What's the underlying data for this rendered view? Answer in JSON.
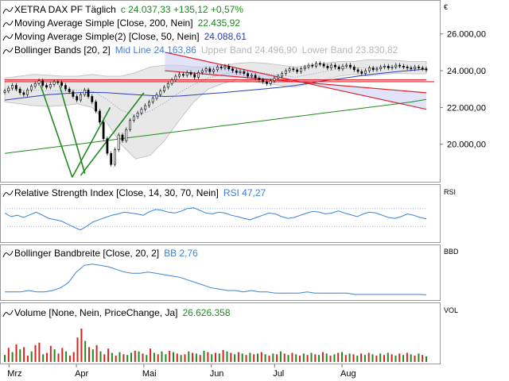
{
  "chart_data": {
    "type": "candlestick",
    "x_labels": [
      "Mrz",
      "Apr",
      "Mai",
      "Jun",
      "Jul",
      "Aug"
    ],
    "price_panel": {
      "axis_currency": "€",
      "y_ticks": [
        20000,
        22000,
        24000,
        26000
      ],
      "y_tick_labels": [
        "20.000,00",
        "22.000,00",
        "24.000,00",
        "26.000,00"
      ],
      "ylim": [
        18000,
        27500
      ],
      "legend": [
        {
          "label": "XETRA DAX PF  Täglich",
          "value": "c 24.037,33  +135,12  +0,57%",
          "value_color": "#1a8a1a"
        },
        {
          "label": "Moving Average Simple [Close, 200, Nein]",
          "value": "22.435,92",
          "value_color": "#1a8a1a"
        },
        {
          "label": "Moving Average Simple(2) [Close, 50, Nein]",
          "value": "24.088,61",
          "value_color": "#2a3fb8"
        },
        {
          "label": "Bollinger Bands [20, 2]",
          "value": "Mid Line 24.163,86",
          "value_color": "#4a7ed6",
          "extra1": "Upper Band 24.496,90",
          "extra2": "Lower Band 23.830,82"
        }
      ],
      "close_series": [
        22900,
        23050,
        23200,
        23000,
        22800,
        22700,
        22950,
        23150,
        23300,
        23450,
        23200,
        23100,
        23250,
        23400,
        23350,
        23200,
        23000,
        22850,
        22600,
        22400,
        22700,
        22950,
        22600,
        22300,
        21800,
        21200,
        20300,
        19500,
        18900,
        19700,
        20500,
        20200,
        20800,
        21300,
        21500,
        21700,
        21900,
        22100,
        22300,
        22500,
        22700,
        22900,
        23100,
        23300,
        23500,
        23700,
        23800,
        23750,
        23900,
        23800,
        23650,
        23900,
        24000,
        24100,
        23950,
        24050,
        24200,
        24150,
        24250,
        24100,
        24000,
        23900,
        23950,
        23850,
        23700,
        23750,
        23600,
        23500,
        23400,
        23300,
        23450,
        23600,
        23700,
        23850,
        24000,
        24100,
        24050,
        23950,
        24100,
        24200,
        24300,
        24250,
        24400,
        24350,
        24250,
        24150,
        24300,
        24200,
        24100,
        24250,
        24300,
        24200,
        24050,
        23950,
        23850,
        24000,
        24150,
        24050,
        24100,
        24200,
        24250,
        24150,
        24200,
        24300,
        24250,
        24200,
        24150,
        24100,
        24200,
        24150,
        24100,
        24037
      ],
      "sma200": [
        19500,
        19600,
        19700,
        19800,
        19900,
        20000,
        20100,
        20200,
        20300,
        20400,
        20500,
        20600,
        20700,
        20800,
        20900,
        21000,
        21100,
        21200,
        21300,
        21400,
        21500,
        21600,
        21700,
        21800,
        21900,
        22000,
        22100,
        22200,
        22300,
        22436
      ],
      "sma50": [
        22400,
        22500,
        22600,
        22700,
        22750,
        22800,
        22820,
        22800,
        22750,
        22700,
        22650,
        22600,
        22620,
        22680,
        22750,
        22800,
        22880,
        22950,
        23020,
        23100,
        23200,
        23320,
        23450,
        23560,
        23670,
        23780,
        23870,
        23950,
        24020,
        24089
      ],
      "boll_upper": [
        23600,
        23700,
        23800,
        23750,
        23700,
        23700,
        23800,
        23700,
        23700,
        23900,
        24200,
        24300,
        24300,
        24200,
        24200,
        24300,
        24400,
        24450,
        24400,
        24300,
        24200,
        24300,
        24400,
        24500,
        24500,
        24600,
        24600,
        24550,
        24500,
        24497
      ],
      "boll_lower": [
        22300,
        22200,
        22100,
        22050,
        22100,
        22200,
        22000,
        21200,
        20000,
        19200,
        19400,
        20200,
        21300,
        22300,
        23000,
        23300,
        23500,
        23400,
        23300,
        23200,
        23100,
        23300,
        23500,
        23700,
        23800,
        23700,
        23800,
        23850,
        23830,
        23831
      ],
      "trendlines": [
        {
          "color": "#e0202a",
          "from": [
            0,
            23500
          ],
          "to": [
            1,
            23500
          ]
        },
        {
          "color": "#e0202a",
          "from": [
            0.38,
            25000
          ],
          "to": [
            1,
            21900
          ]
        },
        {
          "color": "#e0202a",
          "from": [
            0.38,
            24000
          ],
          "to": [
            1,
            22800
          ]
        },
        {
          "color": "#1f8a1f",
          "from": [
            0.085,
            23200
          ],
          "to": [
            0.16,
            18200
          ]
        },
        {
          "color": "#1f8a1f",
          "from": [
            0.13,
            23200
          ],
          "to": [
            0.19,
            18400
          ]
        },
        {
          "color": "#1f8a1f",
          "from": [
            0.16,
            18200
          ],
          "to": [
            0.25,
            22000
          ]
        },
        {
          "color": "#1f8a1f",
          "from": [
            0.18,
            18300
          ],
          "to": [
            0.33,
            22800
          ]
        }
      ]
    },
    "rsi_panel": {
      "label": "Relative Strength Index [Close, 14, 30, 70, Nein]",
      "value": "RSI 47,27",
      "axis_label": "RSI",
      "levels": [
        30,
        70
      ],
      "ylim": [
        0,
        100
      ],
      "series": [
        60,
        52,
        55,
        50,
        56,
        62,
        55,
        48,
        45,
        42,
        35,
        28,
        22,
        30,
        40,
        45,
        50,
        55,
        58,
        62,
        60,
        58,
        55,
        63,
        68,
        66,
        62,
        60,
        64,
        70,
        72,
        66,
        60,
        58,
        62,
        60,
        55,
        52,
        48,
        45,
        50,
        55,
        60,
        58,
        52,
        48,
        50,
        55,
        60,
        64,
        62,
        58,
        60,
        65,
        60,
        56,
        52,
        58,
        62,
        60,
        55,
        50,
        48,
        52,
        58,
        55,
        50,
        47
      ]
    },
    "bbd_panel": {
      "label": "Bollinger Bandbreite [Close, 20, 2]",
      "value": "BB 2,76",
      "axis_label": "BBD",
      "ylim": [
        0,
        30
      ],
      "series": [
        5,
        5,
        5,
        6,
        5,
        5,
        6,
        8,
        12,
        20,
        25,
        26,
        25,
        24,
        22,
        20,
        19,
        19,
        20,
        19,
        18,
        17,
        16,
        14,
        12,
        10,
        8,
        7,
        6,
        6,
        5,
        6,
        5,
        5,
        4,
        4,
        4,
        4,
        5,
        4,
        4,
        4,
        4,
        4,
        3,
        3,
        3,
        3,
        3,
        3,
        3,
        3,
        3,
        2.76
      ]
    },
    "volume_panel": {
      "label": "Volume [None, Nein, PriceChange, Ja]",
      "value": "26.626.358",
      "axis_label": "VOL",
      "series": [
        20,
        40,
        28,
        50,
        36,
        42,
        18,
        30,
        48,
        55,
        22,
        26,
        46,
        36,
        24,
        40,
        30,
        18,
        28,
        70,
        95,
        60,
        42,
        36,
        48,
        30,
        22,
        38,
        26,
        18,
        28,
        22,
        20,
        26,
        32,
        30,
        24,
        20,
        38,
        26,
        22,
        30,
        22,
        32,
        28,
        24,
        20,
        22,
        30,
        26,
        24,
        20,
        32,
        28,
        22,
        26,
        24,
        34,
        30,
        26,
        22,
        28,
        24,
        20,
        26,
        22,
        24,
        28,
        22,
        18,
        24,
        22,
        30,
        24,
        20,
        26,
        22,
        18,
        24,
        20,
        26,
        22,
        20,
        28,
        24,
        18,
        22,
        26,
        28,
        20,
        24,
        22,
        18,
        24,
        20,
        26,
        22,
        18,
        24,
        20,
        26,
        22,
        18,
        24,
        20,
        26,
        22,
        18,
        24,
        20,
        16
      ],
      "signs": [
        "+",
        "-",
        "+",
        "-",
        "+",
        "-",
        "-",
        "+",
        "-",
        "-",
        "+",
        "-",
        "-",
        "+",
        "-",
        "-",
        "+",
        "-",
        "-",
        "-",
        "-",
        "+",
        "-",
        "+",
        "-",
        "+",
        "-",
        "-",
        "+",
        "-",
        "+",
        "-",
        "+",
        "+",
        "-",
        "+",
        "-",
        "+",
        "-",
        "+",
        "-",
        "+",
        "+",
        "-",
        "+",
        "-",
        "+",
        "-",
        "+",
        "-",
        "+",
        "-",
        "+",
        "-",
        "+",
        "-",
        "+",
        "-",
        "+",
        "-",
        "+",
        "-",
        "+",
        "-",
        "+",
        "-",
        "+",
        "-",
        "+",
        "-",
        "+",
        "-",
        "+",
        "-",
        "+",
        "-",
        "+",
        "-",
        "+",
        "-",
        "+",
        "-",
        "+",
        "-",
        "+",
        "-",
        "+",
        "-",
        "+",
        "-",
        "+",
        "-",
        "+",
        "-",
        "+",
        "-",
        "+",
        "-",
        "+",
        "-",
        "+",
        "-",
        "+",
        "-",
        "+",
        "-",
        "+",
        "-",
        "+",
        "-",
        "+",
        "-"
      ]
    }
  }
}
